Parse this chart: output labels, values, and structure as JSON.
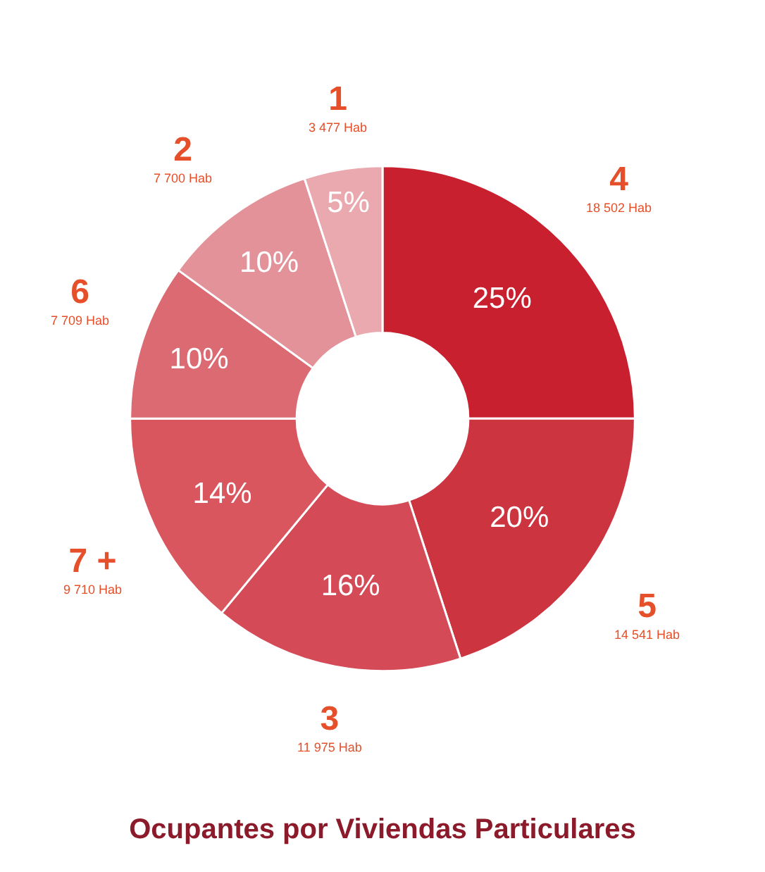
{
  "chart_data": {
    "type": "donut",
    "title": "Ocupantes por Viviendas Particulares",
    "categories": [
      "4\n18 502 Hab",
      "5\n14 541 Hab",
      "3\n11 975 Hab",
      "7 +\n9 710 Hab",
      "6\n7 709 Hab",
      "2\n7 700 Hab",
      "1\n3 477 Hab"
    ],
    "values": [
      25,
      20,
      16,
      14,
      10,
      10,
      5
    ],
    "value_labels": [
      "25%",
      "20%",
      "16%",
      "14%",
      "10%",
      "10%",
      "5%"
    ],
    "colors": [
      "#c8202e",
      "#cc3440",
      "#d44a56",
      "#d9565f",
      "#dc6a73",
      "#e3929a",
      "#e9a9ae"
    ],
    "legend": false
  }
}
